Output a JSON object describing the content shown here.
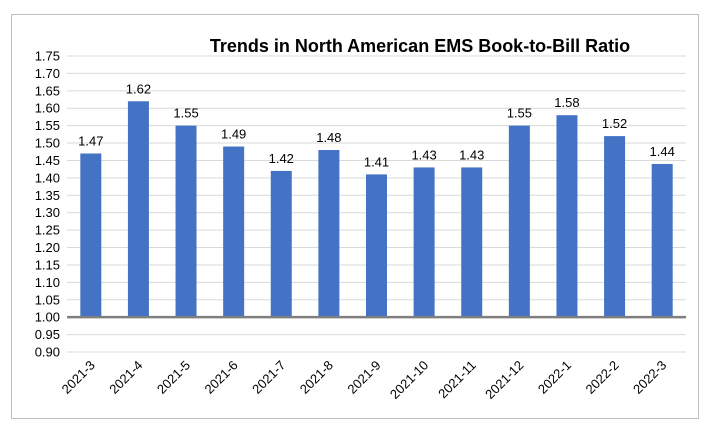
{
  "chart_data": {
    "type": "bar",
    "title": "Trends in North American EMS Book-to-Bill Ratio",
    "xlabel": "",
    "ylabel": "",
    "categories": [
      "2021-3",
      "2021-4",
      "2021-5",
      "2021-6",
      "2021-7",
      "2021-8",
      "2021-9",
      "2021-10",
      "2021-11",
      "2021-12",
      "2022-1",
      "2022-2",
      "2022-3"
    ],
    "values": [
      1.47,
      1.62,
      1.55,
      1.49,
      1.42,
      1.48,
      1.41,
      1.43,
      1.43,
      1.55,
      1.58,
      1.52,
      1.44
    ],
    "data_labels": [
      "1.47",
      "1.62",
      "1.55",
      "1.49",
      "1.42",
      "1.48",
      "1.41",
      "1.43",
      "1.43",
      "1.55",
      "1.58",
      "1.52",
      "1.44"
    ],
    "ylim": [
      0.9,
      1.75
    ],
    "yticks": [
      "0.90",
      "0.95",
      "1.00",
      "1.05",
      "1.10",
      "1.15",
      "1.20",
      "1.25",
      "1.30",
      "1.35",
      "1.40",
      "1.45",
      "1.50",
      "1.55",
      "1.60",
      "1.65",
      "1.70",
      "1.75"
    ],
    "baseline": 1.0,
    "grid": true,
    "legend": "none",
    "bar_color": "#4472c4"
  }
}
